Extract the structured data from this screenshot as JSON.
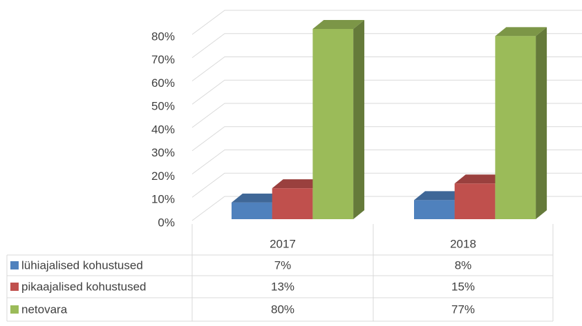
{
  "chart_data": {
    "type": "bar3d",
    "categories": [
      "2017",
      "2018"
    ],
    "series": [
      {
        "name": "lühiajalised kohustused",
        "color": "#4f81bd",
        "values": [
          7,
          8
        ],
        "value_labels": [
          "7%",
          "8%"
        ]
      },
      {
        "name": "pikaajalised kohustused",
        "color": "#c0504d",
        "values": [
          13,
          15
        ],
        "value_labels": [
          "13%",
          "15%"
        ]
      },
      {
        "name": "netovara",
        "color": "#9bbb59",
        "values": [
          80,
          77
        ],
        "value_labels": [
          "80%",
          "77%"
        ]
      }
    ],
    "ylim": [
      0,
      80
    ],
    "yticks": [
      {
        "value": 0,
        "label": "0%"
      },
      {
        "value": 10,
        "label": "10%"
      },
      {
        "value": 20,
        "label": "20%"
      },
      {
        "value": 30,
        "label": "30%"
      },
      {
        "value": 40,
        "label": "40%"
      },
      {
        "value": 50,
        "label": "50%"
      },
      {
        "value": 60,
        "label": "60%"
      },
      {
        "value": 70,
        "label": "70%"
      },
      {
        "value": 80,
        "label": "80%"
      }
    ],
    "grid": true,
    "data_table": true
  }
}
